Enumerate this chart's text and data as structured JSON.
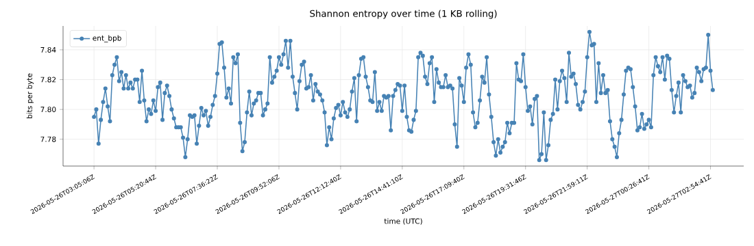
{
  "chart_data": {
    "type": "line",
    "title": "Shannon entropy over time (1 KB rolling)",
    "xlabel": "time (UTC)",
    "ylabel": "bits per byte",
    "categories": [
      "2026-05-26T03:05:06Z",
      null,
      null,
      null,
      null,
      null,
      null,
      null,
      null,
      null,
      null,
      null,
      null,
      null,
      null,
      null,
      null,
      null,
      null,
      null,
      null,
      null,
      null,
      null,
      null,
      null,
      null,
      "2026-05-26T05:20:44Z",
      null,
      null,
      null,
      null,
      null,
      null,
      null,
      null,
      null,
      null,
      null,
      null,
      null,
      null,
      null,
      null,
      null,
      null,
      null,
      null,
      null,
      null,
      null,
      null,
      null,
      null,
      "2026-05-26T07:36:22Z",
      null,
      null,
      null,
      null,
      null,
      null,
      null,
      null,
      null,
      null,
      null,
      null,
      null,
      null,
      null,
      null,
      null,
      null,
      null,
      null,
      null,
      null,
      null,
      null,
      null,
      null,
      "2026-05-26T09:52:06Z",
      null,
      null,
      null,
      null,
      null,
      null,
      null,
      null,
      null,
      null,
      null,
      null,
      null,
      null,
      null,
      null,
      null,
      null,
      null,
      null,
      null,
      null,
      null,
      null,
      null,
      null,
      "2026-05-26T12:12:40Z",
      null,
      null,
      null,
      null,
      null,
      null,
      null,
      null,
      null,
      null,
      null,
      null,
      null,
      null,
      null,
      null,
      null,
      null,
      null,
      null,
      null,
      null,
      null,
      null,
      null,
      null,
      "2026-05-26T14:41:10Z",
      null,
      null,
      null,
      null,
      null,
      null,
      null,
      null,
      null,
      null,
      null,
      null,
      null,
      null,
      null,
      null,
      null,
      null,
      null,
      null,
      null,
      null,
      null,
      null,
      null,
      null,
      "2026-05-26T17:09:40Z",
      null,
      null,
      null,
      null,
      null,
      null,
      null,
      null,
      null,
      null,
      null,
      null,
      null,
      null,
      null,
      null,
      null,
      null,
      null,
      null,
      null,
      null,
      null,
      null,
      null,
      null,
      "2026-05-26T19:31:46Z",
      null,
      null,
      null,
      null,
      null,
      null,
      null,
      null,
      null,
      null,
      null,
      null,
      null,
      null,
      null,
      null,
      null,
      null,
      null,
      null,
      null,
      null,
      null,
      null,
      null,
      null,
      "2026-05-26T21:59:11Z",
      null,
      null,
      null,
      null,
      null,
      null,
      null,
      null,
      null,
      null,
      null,
      null,
      null,
      null,
      null,
      null,
      null,
      null,
      null,
      null,
      null,
      null,
      null,
      null,
      null,
      null,
      "2026-05-27T00:26:41Z",
      null,
      null,
      null,
      null,
      null,
      null,
      null,
      null,
      null,
      null,
      null,
      null,
      null,
      null,
      null,
      null,
      null,
      null,
      null,
      null,
      null,
      null,
      null,
      null,
      null,
      null,
      "2026-05-27T02:54:41Z",
      null
    ],
    "series": [
      {
        "name": "ent_bpb",
        "color": "#4682b4",
        "values": [
          7.795,
          7.8,
          7.777,
          7.793,
          7.805,
          7.814,
          7.802,
          7.792,
          7.823,
          7.83,
          7.835,
          7.819,
          7.825,
          7.814,
          7.823,
          7.814,
          7.818,
          7.814,
          7.82,
          7.82,
          7.805,
          7.826,
          7.806,
          7.792,
          7.8,
          7.797,
          7.806,
          7.799,
          7.815,
          7.818,
          7.793,
          7.811,
          7.816,
          7.809,
          7.8,
          7.794,
          7.788,
          7.788,
          7.788,
          7.781,
          7.768,
          7.78,
          7.796,
          7.795,
          7.796,
          7.777,
          7.789,
          7.801,
          7.796,
          7.799,
          7.789,
          7.795,
          7.803,
          7.809,
          7.824,
          7.844,
          7.845,
          7.828,
          7.808,
          7.814,
          7.804,
          7.835,
          7.831,
          7.837,
          7.791,
          7.772,
          7.778,
          7.798,
          7.812,
          7.796,
          7.804,
          7.806,
          7.811,
          7.811,
          7.796,
          7.8,
          7.804,
          7.835,
          7.818,
          7.822,
          7.826,
          7.835,
          7.83,
          7.837,
          7.846,
          7.828,
          7.846,
          7.822,
          7.811,
          7.8,
          7.819,
          7.83,
          7.832,
          7.814,
          7.815,
          7.823,
          7.806,
          7.817,
          7.812,
          7.81,
          7.806,
          7.798,
          7.776,
          7.788,
          7.78,
          7.794,
          7.801,
          7.803,
          7.796,
          7.805,
          7.798,
          7.795,
          7.8,
          7.812,
          7.821,
          7.792,
          7.823,
          7.834,
          7.835,
          7.822,
          7.815,
          7.806,
          7.805,
          7.825,
          7.799,
          7.805,
          7.799,
          7.809,
          7.808,
          7.809,
          7.786,
          7.809,
          7.813,
          7.817,
          7.816,
          7.799,
          7.816,
          7.795,
          7.786,
          7.785,
          7.793,
          7.799,
          7.835,
          7.838,
          7.836,
          7.822,
          7.817,
          7.831,
          7.835,
          7.805,
          7.827,
          7.818,
          7.815,
          7.815,
          7.823,
          7.815,
          7.816,
          7.814,
          7.79,
          7.775,
          7.821,
          7.816,
          7.805,
          7.828,
          7.837,
          7.83,
          7.798,
          7.788,
          7.791,
          7.806,
          7.822,
          7.818,
          7.835,
          7.81,
          7.795,
          7.778,
          7.769,
          7.78,
          7.771,
          7.775,
          7.778,
          7.791,
          7.784,
          7.791,
          7.791,
          7.831,
          7.82,
          7.819,
          7.837,
          7.815,
          7.799,
          7.802,
          7.79,
          7.807,
          7.809,
          7.766,
          7.77,
          7.798,
          7.766,
          7.776,
          7.793,
          7.797,
          7.82,
          7.8,
          7.819,
          7.826,
          7.821,
          7.805,
          7.838,
          7.822,
          7.824,
          7.817,
          7.803,
          7.8,
          7.805,
          7.812,
          7.835,
          7.852,
          7.843,
          7.844,
          7.805,
          7.831,
          7.811,
          7.823,
          7.811,
          7.813,
          7.792,
          7.78,
          7.775,
          7.768,
          7.784,
          7.793,
          7.81,
          7.826,
          7.828,
          7.827,
          7.815,
          7.802,
          7.786,
          7.788,
          7.797,
          7.787,
          7.79,
          7.793,
          7.788,
          7.823,
          7.835,
          7.829,
          7.825,
          7.835,
          7.82,
          7.836,
          7.834,
          7.813,
          7.798,
          7.809,
          7.818,
          7.798,
          7.823,
          7.819,
          7.815,
          7.816,
          7.808,
          7.811,
          7.828,
          7.825,
          7.819,
          7.827,
          7.828,
          7.85,
          7.826,
          7.813
        ]
      }
    ],
    "ylim": [
      7.762,
      7.856
    ],
    "yticks": [
      {
        "value": 7.78,
        "label": "7.78"
      },
      {
        "value": 7.8,
        "label": "7.80"
      },
      {
        "value": 7.82,
        "label": "7.82"
      },
      {
        "value": 7.84,
        "label": "7.84"
      }
    ],
    "grid": true,
    "legend": "top left",
    "marker": "circle",
    "line_style": "solid"
  }
}
